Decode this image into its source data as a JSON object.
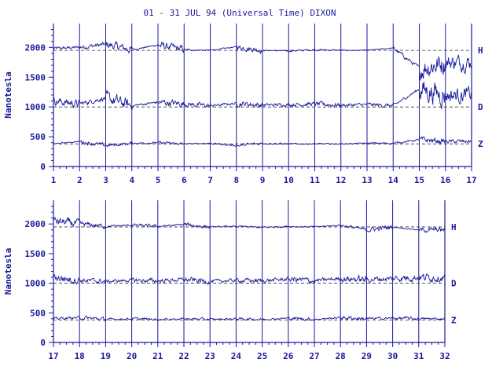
{
  "chart_data": [
    {
      "type": "line",
      "title": "01 - 31 JUL 94 (Universal Time) DIXON",
      "ylabel": "Nanotesla",
      "x_range": [
        1,
        17
      ],
      "x_ticks": [
        "1",
        "2",
        "3",
        "4",
        "5",
        "6",
        "7",
        "8",
        "9",
        "10",
        "11",
        "12",
        "13",
        "14",
        "15",
        "16",
        "17"
      ],
      "ylim": [
        0,
        2400
      ],
      "y_ticks": [
        "0",
        "500",
        "1000",
        "1500",
        "2000"
      ],
      "grid": "vertical day lines",
      "series": [
        {
          "name": "H",
          "baseline": 1950,
          "values": [
            1980,
            2000,
            2050,
            1960,
            2040,
            1960,
            1950,
            2010,
            1950,
            1940,
            1960,
            1950,
            1950,
            1990,
            1650,
            1750
          ]
        },
        {
          "name": "D",
          "baseline": 1000,
          "values": [
            1100,
            1050,
            1150,
            1020,
            1080,
            1050,
            1020,
            1060,
            1030,
            1040,
            1050,
            1030,
            1040,
            1020,
            1300,
            1200
          ]
        },
        {
          "name": "Z",
          "baseline": 380,
          "values": [
            380,
            420,
            350,
            390,
            400,
            380,
            390,
            350,
            390,
            380,
            380,
            380,
            390,
            390,
            450,
            420
          ]
        }
      ]
    },
    {
      "type": "line",
      "title": "",
      "ylabel": "Nanotesla",
      "x_range": [
        17,
        32
      ],
      "x_ticks": [
        "17",
        "18",
        "19",
        "20",
        "21",
        "22",
        "23",
        "24",
        "25",
        "26",
        "27",
        "28",
        "29",
        "30",
        "31",
        "32"
      ],
      "ylim": [
        0,
        2400
      ],
      "y_ticks": [
        "0",
        "500",
        "1000",
        "1500",
        "2000"
      ],
      "grid": "vertical day lines",
      "series": [
        {
          "name": "H",
          "baseline": 1950,
          "values": [
            2050,
            2000,
            1960,
            1980,
            1960,
            1990,
            1950,
            1960,
            1940,
            1960,
            1950,
            1980,
            1900,
            1950,
            1900
          ]
        },
        {
          "name": "D",
          "baseline": 1000,
          "values": [
            1100,
            1050,
            1030,
            1050,
            1040,
            1060,
            1030,
            1050,
            1040,
            1070,
            1040,
            1080,
            1060,
            1080,
            1100
          ]
        },
        {
          "name": "Z",
          "baseline": 380,
          "values": [
            400,
            420,
            390,
            400,
            390,
            400,
            390,
            400,
            390,
            410,
            390,
            420,
            400,
            410,
            400
          ]
        }
      ]
    }
  ]
}
